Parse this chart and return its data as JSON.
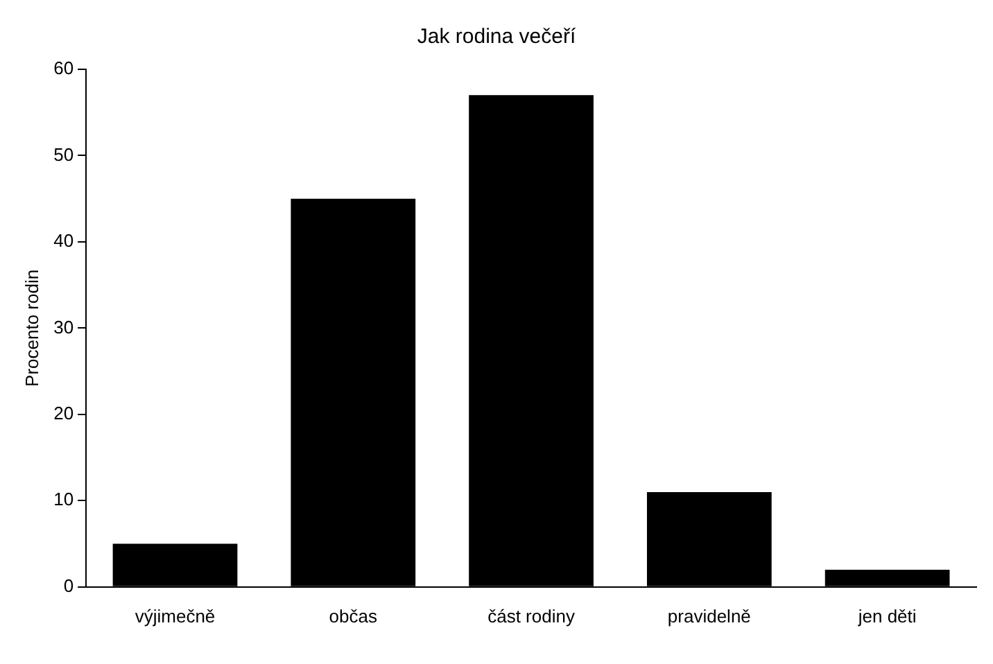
{
  "chart_data": {
    "type": "bar",
    "title": "Jak rodina večeří",
    "ylabel": "Procento rodin",
    "categories": [
      "výjimečně",
      "občas",
      "část rodiny",
      "pravidelně",
      "jen děti"
    ],
    "values": [
      5,
      45,
      57,
      11,
      2
    ],
    "color": "#000000",
    "ylim": [
      0,
      60
    ],
    "yticks": [
      0,
      10,
      20,
      30,
      40,
      50,
      60
    ],
    "grid": false,
    "legend": false
  }
}
